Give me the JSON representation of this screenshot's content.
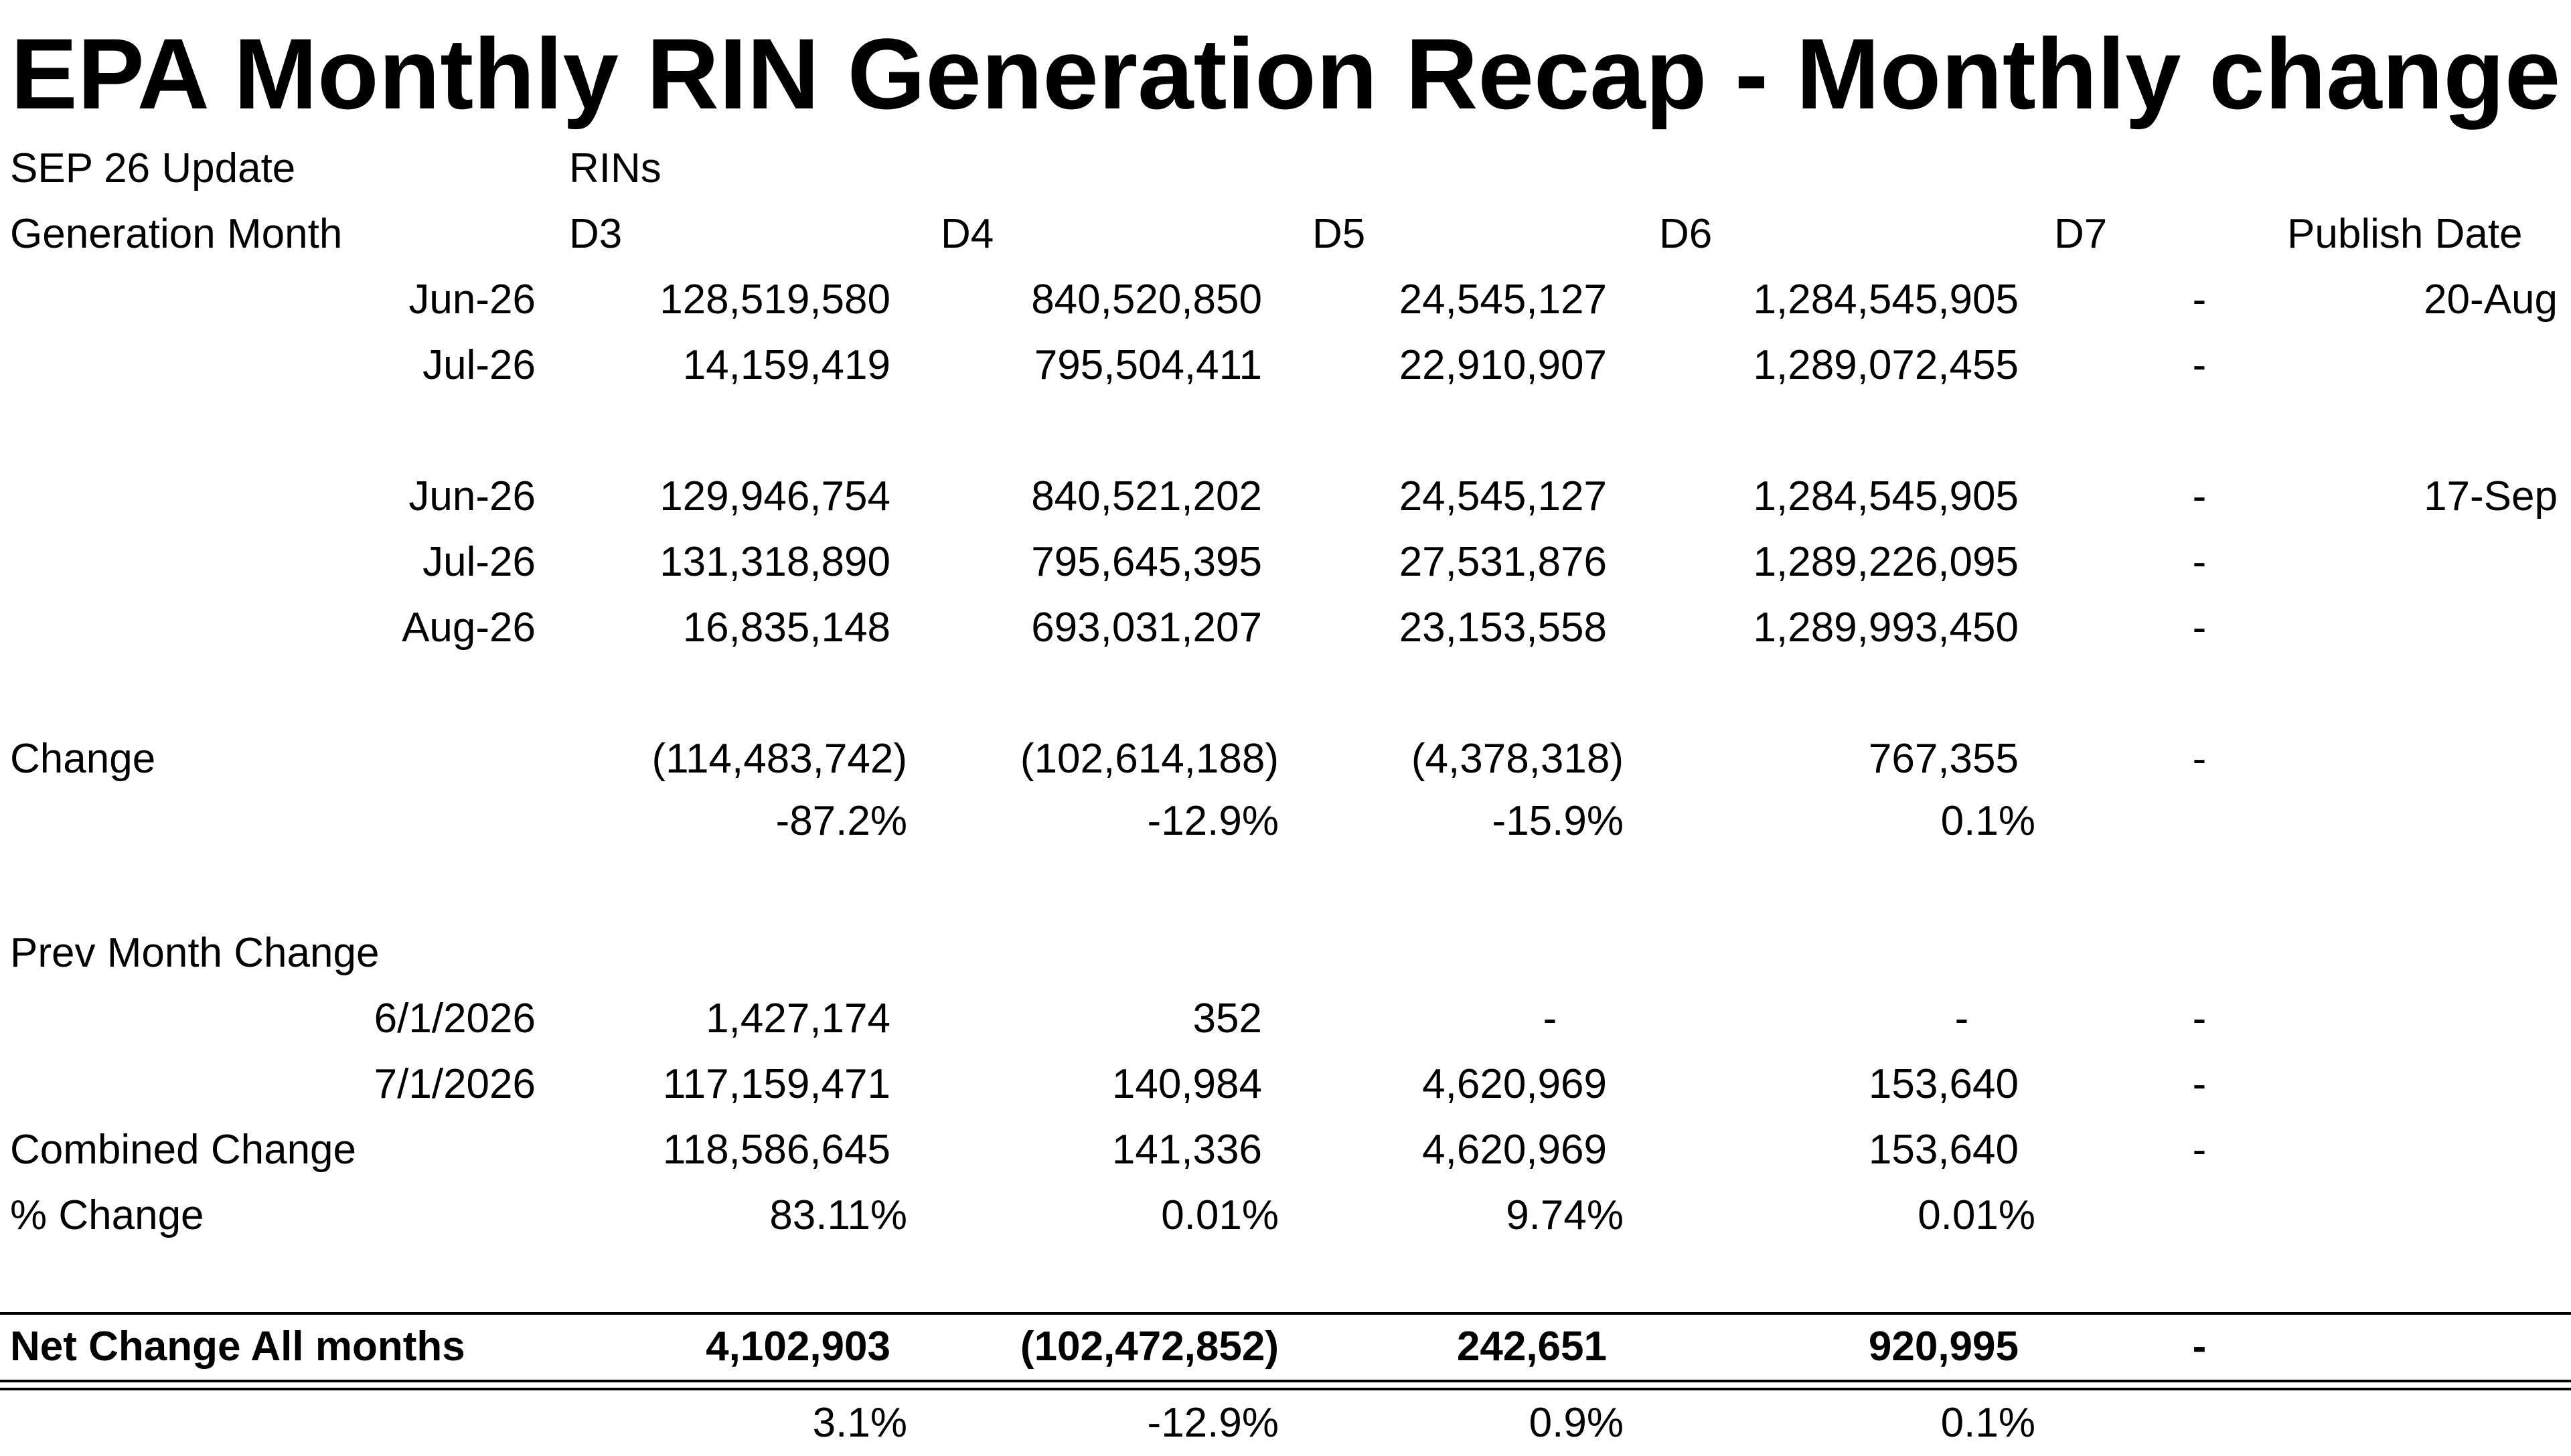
{
  "title": "EPA Monthly RIN Generation Recap - Monthly change",
  "header": {
    "update_label": "SEP 26 Update",
    "rins_label": "RINs",
    "gen_month_label": "Generation Month",
    "cols": [
      "D3",
      "D4",
      "D5",
      "D6",
      "D7"
    ],
    "publish_label": "Publish Date"
  },
  "aug_release": {
    "publish_date": "20-Aug",
    "rows": [
      {
        "month": "Jun-26",
        "d3": "128,519,580",
        "d4": "840,520,850",
        "d5": "24,545,127",
        "d6": "1,284,545,905",
        "d7": "-"
      },
      {
        "month": "Jul-26",
        "d3": "14,159,419",
        "d4": "795,504,411",
        "d5": "22,910,907",
        "d6": "1,289,072,455",
        "d7": "-"
      }
    ]
  },
  "sep_release": {
    "publish_date": "17-Sep",
    "rows": [
      {
        "month": "Jun-26",
        "d3": "129,946,754",
        "d4": "840,521,202",
        "d5": "24,545,127",
        "d6": "1,284,545,905",
        "d7": "-"
      },
      {
        "month": "Jul-26",
        "d3": "131,318,890",
        "d4": "795,645,395",
        "d5": "27,531,876",
        "d6": "1,289,226,095",
        "d7": "-"
      },
      {
        "month": "Aug-26",
        "d3": "16,835,148",
        "d4": "693,031,207",
        "d5": "23,153,558",
        "d6": "1,289,993,450",
        "d7": "-"
      }
    ]
  },
  "change": {
    "label": "Change",
    "d3": "(114,483,742)",
    "d4": "(102,614,188)",
    "d5": "(4,378,318)",
    "d6": "767,355",
    "d7": "-",
    "pct": {
      "d3": "-87.2%",
      "d4": "-12.9%",
      "d5": "-15.9%",
      "d6": "0.1%"
    }
  },
  "prev_month_change": {
    "label": "Prev Month Change",
    "rows": [
      {
        "date": "6/1/2026",
        "d3": "1,427,174",
        "d4": "352",
        "d5": "-",
        "d6": "-",
        "d7": "-"
      },
      {
        "date": "7/1/2026",
        "d3": "117,159,471",
        "d4": "140,984",
        "d5": "4,620,969",
        "d6": "153,640",
        "d7": "-"
      }
    ],
    "combined": {
      "label": "Combined Change",
      "d3": "118,586,645",
      "d4": "141,336",
      "d5": "4,620,969",
      "d6": "153,640",
      "d7": "-"
    },
    "pct": {
      "label": "% Change",
      "d3": "83.11%",
      "d4": "0.01%",
      "d5": "9.74%",
      "d6": "0.01%"
    }
  },
  "net_change": {
    "label": "Net Change All months",
    "d3": "4,102,903",
    "d4": "(102,472,852)",
    "d5": "242,651",
    "d6": "920,995",
    "d7": "-",
    "pct": {
      "d3": "3.1%",
      "d4": "-12.9%",
      "d5": "0.9%",
      "d6": "0.1%"
    }
  }
}
